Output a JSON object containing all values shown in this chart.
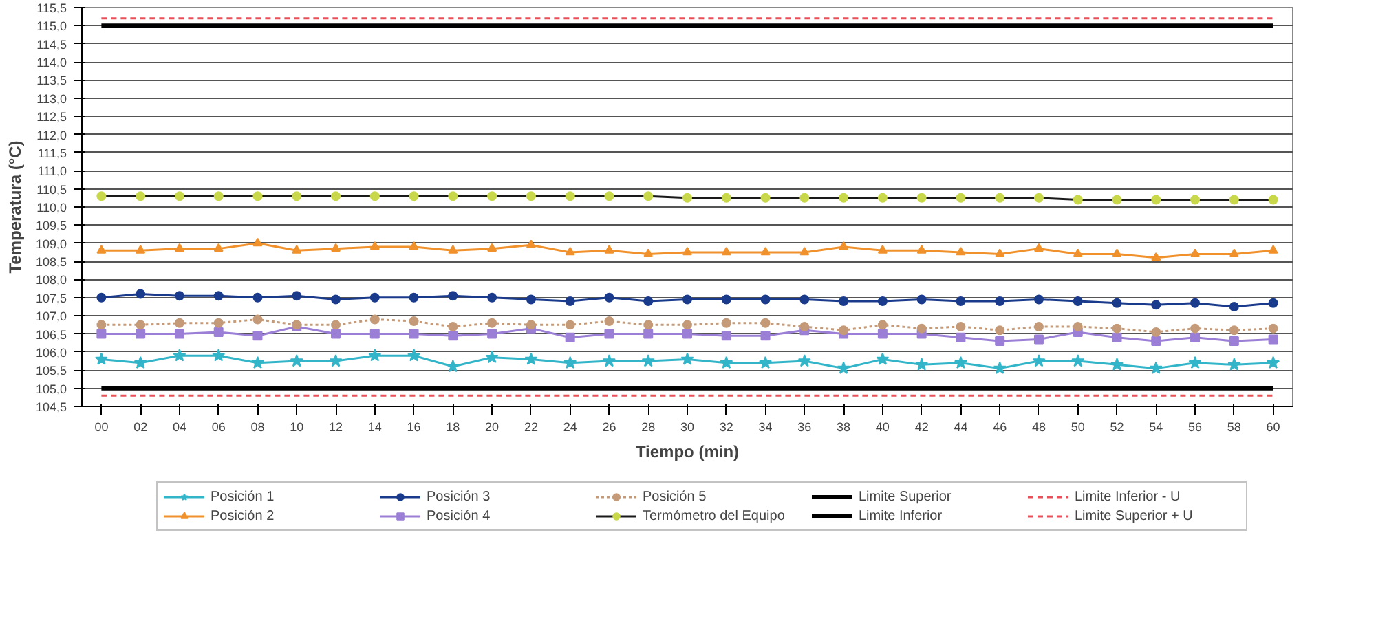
{
  "chart_data": {
    "type": "line",
    "xlabel": "Tiempo (min)",
    "ylabel": "Temperatura (°C)",
    "categories": [
      "00",
      "02",
      "04",
      "06",
      "08",
      "10",
      "12",
      "14",
      "16",
      "18",
      "20",
      "22",
      "24",
      "26",
      "28",
      "30",
      "32",
      "34",
      "36",
      "38",
      "40",
      "42",
      "44",
      "46",
      "48",
      "50",
      "52",
      "54",
      "56",
      "58",
      "60"
    ],
    "ylim": [
      104.5,
      115.5
    ],
    "yticks": [
      {
        "value": 104.5,
        "label": "104,5"
      },
      {
        "value": 105,
        "label": "105,0"
      },
      {
        "value": 105.5,
        "label": "105,5"
      },
      {
        "value": 106,
        "label": "106,0"
      },
      {
        "value": 106.5,
        "label": "106,5"
      },
      {
        "value": 107,
        "label": "107,0"
      },
      {
        "value": 107.5,
        "label": "107,5"
      },
      {
        "value": 108,
        "label": "108,0"
      },
      {
        "value": 108.5,
        "label": "108,5"
      },
      {
        "value": 109,
        "label": "109,0"
      },
      {
        "value": 109.5,
        "label": "109,5"
      },
      {
        "value": 110,
        "label": "110,0"
      },
      {
        "value": 110.5,
        "label": "110,5"
      },
      {
        "value": 111,
        "label": "111,0"
      },
      {
        "value": 111.5,
        "label": "111,5"
      },
      {
        "value": 112,
        "label": "112,0"
      },
      {
        "value": 112.5,
        "label": "112,5"
      },
      {
        "value": 113,
        "label": "113,0"
      },
      {
        "value": 113.5,
        "label": "113,5"
      },
      {
        "value": 114,
        "label": "114,0"
      },
      {
        "value": 114.5,
        "label": "114,5"
      },
      {
        "value": 115,
        "label": "115,0"
      },
      {
        "value": 115.5,
        "label": "115,5"
      }
    ],
    "grid": "y",
    "legend": "bottom",
    "series": [
      {
        "name": "Posición 1",
        "color": "#33b5c9",
        "marker": "star",
        "line_style": "solid",
        "values": [
          105.8,
          105.7,
          105.9,
          105.9,
          105.7,
          105.75,
          105.75,
          105.9,
          105.9,
          105.6,
          105.85,
          105.8,
          105.7,
          105.75,
          105.75,
          105.8,
          105.7,
          105.7,
          105.75,
          105.55,
          105.8,
          105.65,
          105.7,
          105.55,
          105.75,
          105.75,
          105.65,
          105.55,
          105.7,
          105.65,
          105.7
        ]
      },
      {
        "name": "Posición 2",
        "color": "#f0912c",
        "marker": "triangle",
        "line_style": "solid",
        "values": [
          108.8,
          108.8,
          108.85,
          108.85,
          109.0,
          108.8,
          108.85,
          108.9,
          108.9,
          108.8,
          108.85,
          108.95,
          108.75,
          108.8,
          108.7,
          108.75,
          108.75,
          108.75,
          108.75,
          108.9,
          108.8,
          108.8,
          108.75,
          108.7,
          108.85,
          108.7,
          108.7,
          108.6,
          108.7,
          108.7,
          108.8
        ]
      },
      {
        "name": "Posición 3",
        "color": "#1a3b8c",
        "marker": "circle",
        "line_style": "solid",
        "values": [
          107.5,
          107.6,
          107.55,
          107.55,
          107.5,
          107.55,
          107.45,
          107.5,
          107.5,
          107.55,
          107.5,
          107.45,
          107.4,
          107.5,
          107.4,
          107.45,
          107.45,
          107.45,
          107.45,
          107.4,
          107.4,
          107.45,
          107.4,
          107.4,
          107.45,
          107.4,
          107.35,
          107.3,
          107.35,
          107.25,
          107.35
        ]
      },
      {
        "name": "Posición 4",
        "color": "#9b7fd6",
        "marker": "square",
        "line_style": "solid",
        "values": [
          106.5,
          106.5,
          106.5,
          106.55,
          106.45,
          106.7,
          106.5,
          106.5,
          106.5,
          106.45,
          106.5,
          106.65,
          106.4,
          106.5,
          106.5,
          106.5,
          106.45,
          106.45,
          106.6,
          106.5,
          106.5,
          106.5,
          106.4,
          106.3,
          106.35,
          106.55,
          106.4,
          106.3,
          106.4,
          106.3,
          106.35
        ]
      },
      {
        "name": "Posición 5",
        "color": "#c49a78",
        "marker": "circle",
        "line_style": "dotted",
        "values": [
          106.75,
          106.75,
          106.8,
          106.8,
          106.9,
          106.75,
          106.75,
          106.9,
          106.85,
          106.7,
          106.8,
          106.75,
          106.75,
          106.85,
          106.75,
          106.75,
          106.8,
          106.8,
          106.7,
          106.6,
          106.75,
          106.65,
          106.7,
          106.6,
          106.7,
          106.7,
          106.65,
          106.55,
          106.65,
          106.6,
          106.65
        ]
      },
      {
        "name": "Termómetro del Equipo",
        "color": "#1a1a1a",
        "colors": [
          "#c8d84a",
          "#c8d84a",
          "#c8d84a",
          "#c8d84a",
          "#c8d84a",
          "#c8d84a",
          "#c8d84a",
          "#c8d84a",
          "#c8d84a",
          "#c8d84a",
          "#c8d84a",
          "#c8d84a",
          "#c8d84a",
          "#c8d84a",
          "#c8d84a",
          "#c8d84a",
          "#c8d84a",
          "#c8d84a",
          "#c8d84a",
          "#c8d84a",
          "#c8d84a",
          "#c8d84a",
          "#c8d84a",
          "#c8d84a",
          "#c8d84a",
          "#c8d84a",
          "#c8d84a",
          "#c8d84a",
          "#c8d84a",
          "#c8d84a",
          "#c8d84a"
        ],
        "marker": "circle",
        "line_style": "solid",
        "values": [
          110.3,
          110.3,
          110.3,
          110.3,
          110.3,
          110.3,
          110.3,
          110.3,
          110.3,
          110.3,
          110.3,
          110.3,
          110.3,
          110.3,
          110.3,
          110.25,
          110.25,
          110.25,
          110.25,
          110.25,
          110.25,
          110.25,
          110.25,
          110.25,
          110.25,
          110.2,
          110.2,
          110.2,
          110.2,
          110.2,
          110.2
        ]
      },
      {
        "name": "Limite Superior",
        "color": "#000000",
        "marker": "none",
        "line_style": "solid",
        "values": [
          115,
          115,
          115,
          115,
          115,
          115,
          115,
          115,
          115,
          115,
          115,
          115,
          115,
          115,
          115,
          115,
          115,
          115,
          115,
          115,
          115,
          115,
          115,
          115,
          115,
          115,
          115,
          115,
          115,
          115,
          115
        ]
      },
      {
        "name": "Limite Inferior",
        "color": "#000000",
        "marker": "none",
        "line_style": "solid",
        "values": [
          105,
          105,
          105,
          105,
          105,
          105,
          105,
          105,
          105,
          105,
          105,
          105,
          105,
          105,
          105,
          105,
          105,
          105,
          105,
          105,
          105,
          105,
          105,
          105,
          105,
          105,
          105,
          105,
          105,
          105,
          105
        ]
      },
      {
        "name": "Limite Inferior - U",
        "color": "#e8505a",
        "marker": "none",
        "line_style": "dashed",
        "values": [
          104.8,
          104.8,
          104.8,
          104.8,
          104.8,
          104.8,
          104.8,
          104.8,
          104.8,
          104.8,
          104.8,
          104.8,
          104.8,
          104.8,
          104.8,
          104.8,
          104.8,
          104.8,
          104.8,
          104.8,
          104.8,
          104.8,
          104.8,
          104.8,
          104.8,
          104.8,
          104.8,
          104.8,
          104.8,
          104.8,
          104.8
        ]
      },
      {
        "name": "Limite Superior + U",
        "color": "#e8505a",
        "marker": "none",
        "line_style": "dashed",
        "values": [
          115.2,
          115.2,
          115.2,
          115.2,
          115.2,
          115.2,
          115.2,
          115.2,
          115.2,
          115.2,
          115.2,
          115.2,
          115.2,
          115.2,
          115.2,
          115.2,
          115.2,
          115.2,
          115.2,
          115.2,
          115.2,
          115.2,
          115.2,
          115.2,
          115.2,
          115.2,
          115.2,
          115.2,
          115.2,
          115.2,
          115.2
        ]
      }
    ]
  }
}
